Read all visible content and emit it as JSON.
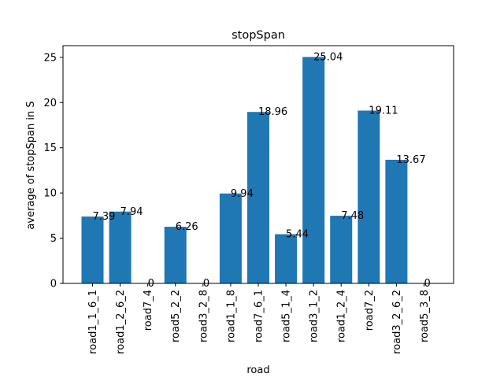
{
  "chart_data": {
    "type": "bar",
    "title": "stopSpan",
    "xlabel": "road",
    "ylabel": "average of stopSpan in S",
    "categories": [
      "road1_1_6_1",
      "road1_2_6_2",
      "road7_4",
      "road5_2_2",
      "road3_2_8",
      "road1_1_8",
      "road7_6_1",
      "road5_1_4",
      "road3_1_2",
      "road1_2_4",
      "road7_2",
      "road3_2_6_2",
      "road5_3_8"
    ],
    "values": [
      7.39,
      7.94,
      0,
      6.26,
      0,
      9.94,
      18.96,
      5.44,
      25.04,
      7.48,
      19.11,
      13.67,
      0
    ],
    "data_labels": [
      "7.39",
      "7.94",
      "0",
      "6.26",
      "0",
      "9.94",
      "18.96",
      "5.44",
      "25.04",
      "7.48",
      "19.11",
      "13.67",
      "0"
    ],
    "ylim": [
      0,
      26.29
    ],
    "yticks": [
      0,
      5,
      10,
      15,
      20,
      25
    ],
    "bar_color": "#1f77b4",
    "grid": false,
    "legend": "none"
  }
}
